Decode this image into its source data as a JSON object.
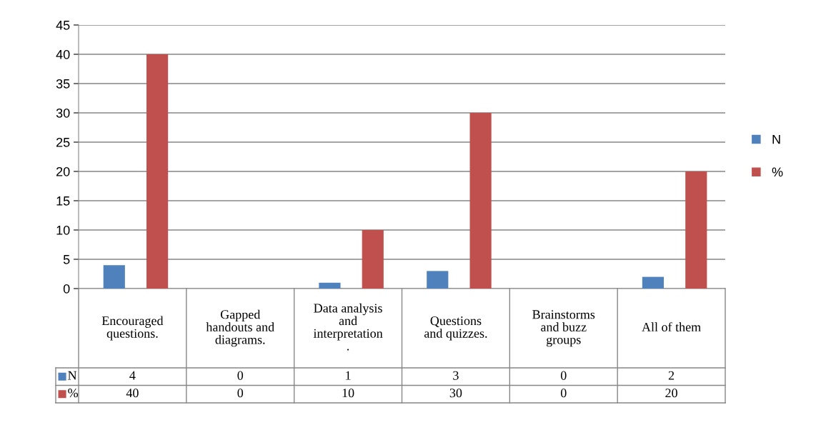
{
  "chart_data": {
    "type": "bar",
    "categories": [
      "Encouraged\nquestions.",
      "Gapped\nhandouts and\ndiagrams.",
      "Data analysis\nand\ninterpretation\n.",
      "Questions\nand quizzes.",
      "Brainstorms\nand buzz\ngroups",
      "All of them"
    ],
    "series": [
      {
        "name": "N",
        "color": "#4f81bd",
        "values": [
          4,
          0,
          1,
          3,
          0,
          2
        ]
      },
      {
        "name": "%",
        "color": "#c0504d",
        "values": [
          40,
          0,
          10,
          30,
          0,
          20
        ]
      }
    ],
    "ylim": [
      0,
      45
    ],
    "yticks": [
      0,
      5,
      10,
      15,
      20,
      25,
      30,
      35,
      40,
      45
    ],
    "grid": "y",
    "legend": "right",
    "data_labels": true
  }
}
